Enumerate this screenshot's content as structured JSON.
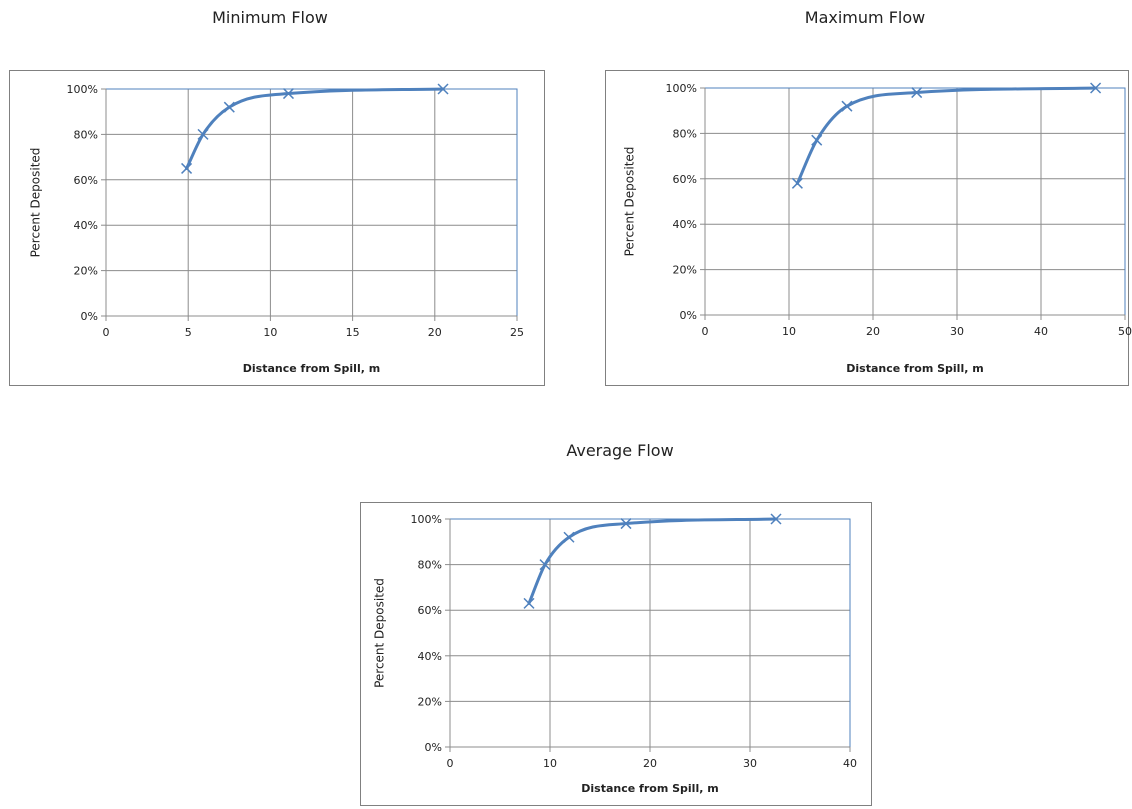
{
  "chart_data": [
    {
      "type": "scatter",
      "title": "Minimum Flow",
      "xlabel": "Distance from Spill, m",
      "ylabel": "Percent Deposited",
      "xlim": [
        0,
        25
      ],
      "ylim": [
        0,
        100
      ],
      "xticks": [
        "0",
        "5",
        "10",
        "15",
        "20",
        "25"
      ],
      "yticks": [
        "0%",
        "20%",
        "40%",
        "60%",
        "80%",
        "100%"
      ],
      "grid": true,
      "legend": "none",
      "series": [
        {
          "x": [
            4.9,
            5.9,
            7.5,
            11.1,
            20.5
          ],
          "y": [
            65,
            80,
            92,
            98,
            100
          ]
        }
      ]
    },
    {
      "type": "scatter",
      "title": "Maximum Flow",
      "xlabel": "Distance from Spill, m",
      "ylabel": "Percent Deposited",
      "xlim": [
        0,
        50
      ],
      "ylim": [
        0,
        100
      ],
      "xticks": [
        "0",
        "10",
        "20",
        "30",
        "40",
        "50"
      ],
      "yticks": [
        "0%",
        "20%",
        "40%",
        "60%",
        "80%",
        "100%"
      ],
      "grid": true,
      "legend": "none",
      "series": [
        {
          "x": [
            11.0,
            13.3,
            16.9,
            25.2,
            46.5
          ],
          "y": [
            58,
            77,
            92,
            98,
            100
          ]
        }
      ]
    },
    {
      "type": "scatter",
      "title": "Average Flow",
      "xlabel": "Distance from Spill, m",
      "ylabel": "Percent Deposited",
      "xlim": [
        0,
        40
      ],
      "ylim": [
        0,
        100
      ],
      "xticks": [
        "0",
        "10",
        "20",
        "30",
        "40"
      ],
      "yticks": [
        "0%",
        "20%",
        "40%",
        "60%",
        "80%",
        "100%"
      ],
      "grid": true,
      "legend": "none",
      "series": [
        {
          "x": [
            7.9,
            9.5,
            11.9,
            17.6,
            32.6
          ],
          "y": [
            63,
            80,
            92,
            98,
            100
          ]
        }
      ]
    }
  ],
  "style": {
    "series_color": "#4f81bd",
    "grid_color": "#8c8c8c",
    "frame_color": "#808080",
    "axis_color": "#4f81bd"
  }
}
